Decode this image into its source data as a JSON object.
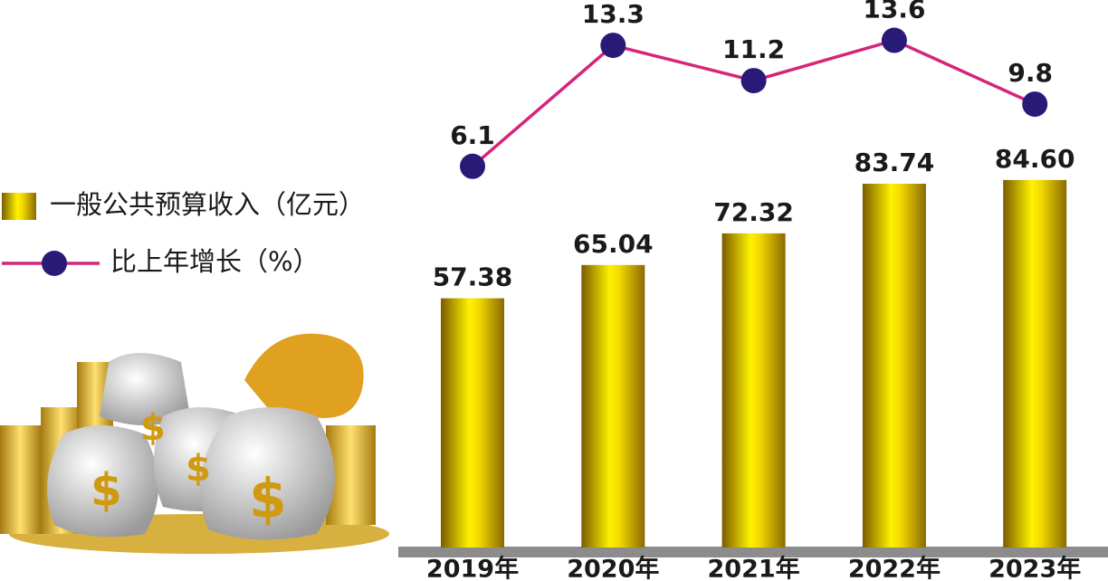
{
  "chart_data": {
    "type": "bar-line",
    "categories": [
      "2019年",
      "2020年",
      "2021年",
      "2022年",
      "2023年"
    ],
    "series": [
      {
        "name": "一般公共预算收入（亿元）",
        "type": "bar",
        "color": "#e8c800",
        "values": [
          57.38,
          65.04,
          72.32,
          83.74,
          84.6
        ],
        "value_labels": [
          "57.38",
          "65.04",
          "72.32",
          "83.74",
          "84.60"
        ]
      },
      {
        "name": "比上年增长（%）",
        "type": "line",
        "axis": "y2",
        "color": "#d6247a",
        "marker_color": "#2a1a78",
        "values": [
          6.1,
          13.3,
          11.2,
          13.6,
          9.8
        ]
      }
    ],
    "ylim": [
      0,
      100
    ],
    "y2lim": [
      0,
      16
    ]
  }
}
